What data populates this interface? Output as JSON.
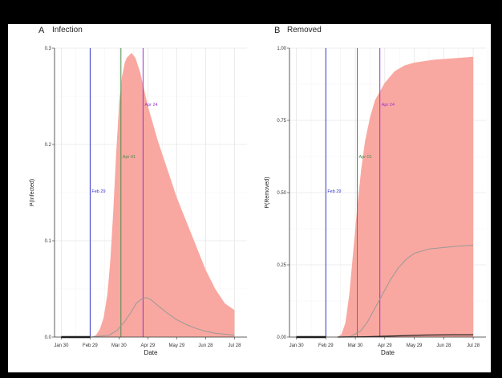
{
  "chart_data": [
    {
      "panel": "A",
      "title": "Infection",
      "type": "area",
      "xlabel": "Date",
      "ylabel": "P(Infected)",
      "x_ticks": [
        "Jan 30",
        "Feb 29",
        "Mar 30",
        "Apr 29",
        "May 29",
        "Jun 28",
        "Jul 28"
      ],
      "y_ticks": [
        "0.0",
        "0.1",
        "0.2",
        "0.3"
      ],
      "ylim": [
        0,
        0.3
      ],
      "grid": true,
      "vlines": [
        {
          "date": "Feb 29",
          "label": "Feb 29",
          "color": "#3333cc"
        },
        {
          "date": "Apr 01",
          "label": "Apr 01",
          "color": "#4a8a4a"
        },
        {
          "date": "Apr 24",
          "label": "Apr 24",
          "color": "#9933cc"
        }
      ],
      "band": {
        "name": "",
        "color": "#f8a8a0",
        "upper": [
          [
            31,
            0.0
          ],
          [
            36,
            0.002
          ],
          [
            40,
            0.008
          ],
          [
            44,
            0.02
          ],
          [
            48,
            0.045
          ],
          [
            51,
            0.08
          ],
          [
            54,
            0.13
          ],
          [
            57,
            0.19
          ],
          [
            60,
            0.24
          ],
          [
            63,
            0.27
          ],
          [
            66,
            0.285
          ],
          [
            68,
            0.29
          ],
          [
            73,
            0.295
          ],
          [
            77,
            0.29
          ],
          [
            82,
            0.275
          ],
          [
            90,
            0.24
          ],
          [
            100,
            0.205
          ],
          [
            110,
            0.175
          ],
          [
            120,
            0.145
          ],
          [
            130,
            0.12
          ],
          [
            140,
            0.095
          ],
          [
            150,
            0.07
          ],
          [
            160,
            0.05
          ],
          [
            170,
            0.035
          ],
          [
            180,
            0.028
          ]
        ],
        "lower": [
          [
            31,
            0.0
          ],
          [
            180,
            0.0
          ]
        ]
      },
      "series": [
        {
          "name": "",
          "color": "#999999",
          "points": [
            [
              31,
              0.0
            ],
            [
              50,
              0.002
            ],
            [
              58,
              0.007
            ],
            [
              65,
              0.015
            ],
            [
              72,
              0.025
            ],
            [
              78,
              0.035
            ],
            [
              84,
              0.04
            ],
            [
              88,
              0.041
            ],
            [
              93,
              0.039
            ],
            [
              100,
              0.033
            ],
            [
              110,
              0.025
            ],
            [
              120,
              0.018
            ],
            [
              130,
              0.013
            ],
            [
              140,
              0.009
            ],
            [
              150,
              0.006
            ],
            [
              160,
              0.004
            ],
            [
              170,
              0.003
            ],
            [
              180,
              0.002
            ]
          ]
        }
      ],
      "observed": {
        "name": "",
        "color": "#111111",
        "x_range": [
          0,
          30
        ],
        "value": 0.0
      }
    },
    {
      "panel": "B",
      "title": "Removed",
      "type": "area",
      "xlabel": "Date",
      "ylabel": "P(Removed)",
      "x_ticks": [
        "Jan 30",
        "Feb 29",
        "Mar 30",
        "Apr 29",
        "May 29",
        "Jun 28",
        "Jul 28"
      ],
      "y_ticks": [
        "0.00",
        "0.25",
        "0.50",
        "0.75",
        "1.00"
      ],
      "ylim": [
        0,
        1.0
      ],
      "grid": true,
      "vlines": [
        {
          "date": "Feb 29",
          "label": "Feb 29",
          "color": "#3333cc"
        },
        {
          "date": "Apr 01",
          "label": "Apr 01",
          "color": "#4a8a4a"
        },
        {
          "date": "Apr 24",
          "label": "Apr 24",
          "color": "#9933cc"
        }
      ],
      "band": {
        "name": "",
        "color": "#f8a8a0",
        "upper": [
          [
            42,
            0.0
          ],
          [
            46,
            0.01
          ],
          [
            50,
            0.05
          ],
          [
            54,
            0.15
          ],
          [
            58,
            0.3
          ],
          [
            62,
            0.45
          ],
          [
            66,
            0.58
          ],
          [
            70,
            0.68
          ],
          [
            75,
            0.76
          ],
          [
            80,
            0.82
          ],
          [
            90,
            0.88
          ],
          [
            100,
            0.92
          ],
          [
            110,
            0.94
          ],
          [
            120,
            0.95
          ],
          [
            140,
            0.96
          ],
          [
            160,
            0.965
          ],
          [
            180,
            0.97
          ]
        ],
        "lower": [
          [
            42,
            0.0
          ],
          [
            180,
            0.0
          ]
        ]
      },
      "series": [
        {
          "name": "",
          "color": "#999999",
          "points": [
            [
              42,
              0.0
            ],
            [
              55,
              0.002
            ],
            [
              65,
              0.02
            ],
            [
              72,
              0.05
            ],
            [
              80,
              0.1
            ],
            [
              88,
              0.15
            ],
            [
              96,
              0.2
            ],
            [
              104,
              0.24
            ],
            [
              112,
              0.27
            ],
            [
              120,
              0.29
            ],
            [
              135,
              0.305
            ],
            [
              150,
              0.31
            ],
            [
              165,
              0.315
            ],
            [
              180,
              0.318
            ]
          ]
        },
        {
          "name": "",
          "color": "#222222",
          "points": [
            [
              42,
              0.0
            ],
            [
              70,
              0.001
            ],
            [
              100,
              0.004
            ],
            [
              130,
              0.007
            ],
            [
              160,
              0.008
            ],
            [
              180,
              0.008
            ]
          ]
        }
      ],
      "observed": {
        "name": "",
        "color": "#111111",
        "x_range": [
          0,
          30
        ],
        "value": 0.0
      }
    }
  ]
}
